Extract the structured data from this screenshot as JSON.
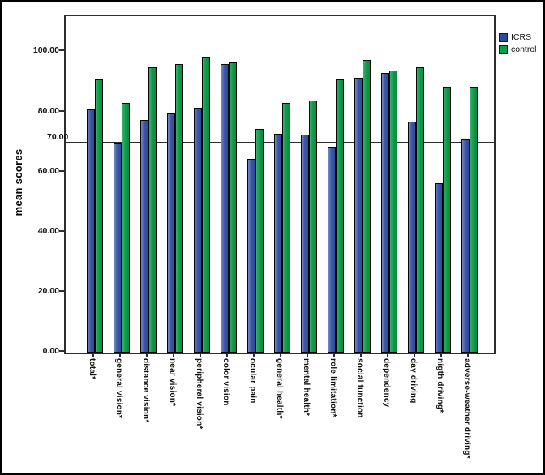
{
  "figure": {
    "background": "#ffffff",
    "border_color": "#000000"
  },
  "chart_data": {
    "type": "bar",
    "title": "",
    "ylabel": "mean scores",
    "xlabel": "",
    "grid": false,
    "legend_position": "top-right-outside",
    "ylim": [
      0,
      112
    ],
    "categories": [
      "total*",
      "general vision*",
      "distance vision*",
      "near vision*",
      "peripheral vision*",
      "color vision",
      "ocular pain",
      "general health*",
      "mental health*",
      "role limitation*",
      "social function",
      "dependency",
      "day driving",
      "nigth driving*",
      "adverse-weather driving*"
    ],
    "series": [
      {
        "name": "ICRS",
        "color": "#3c57a8",
        "values": [
          81,
          69.5,
          77.5,
          79.5,
          81.5,
          96,
          64.5,
          73,
          72.5,
          68.5,
          91.5,
          93,
          77,
          56.5,
          71
        ]
      },
      {
        "name": "control",
        "color": "#0f9d49",
        "values": [
          91,
          83,
          95,
          96,
          98.5,
          96.5,
          74.5,
          83,
          84,
          91,
          97.5,
          94,
          95,
          88.5,
          88.5
        ]
      }
    ],
    "yticks": [
      {
        "value": 100,
        "label": "100.00"
      },
      {
        "value": 80,
        "label": "80.00"
      },
      {
        "value": 60,
        "label": "60.00"
      },
      {
        "value": 40,
        "label": "40.00"
      },
      {
        "value": 20,
        "label": "20.00"
      },
      {
        "value": 0,
        "label": "0.00"
      }
    ],
    "reference_line": {
      "value": 70,
      "label": "70.00",
      "color": "#2c2c2c"
    }
  }
}
